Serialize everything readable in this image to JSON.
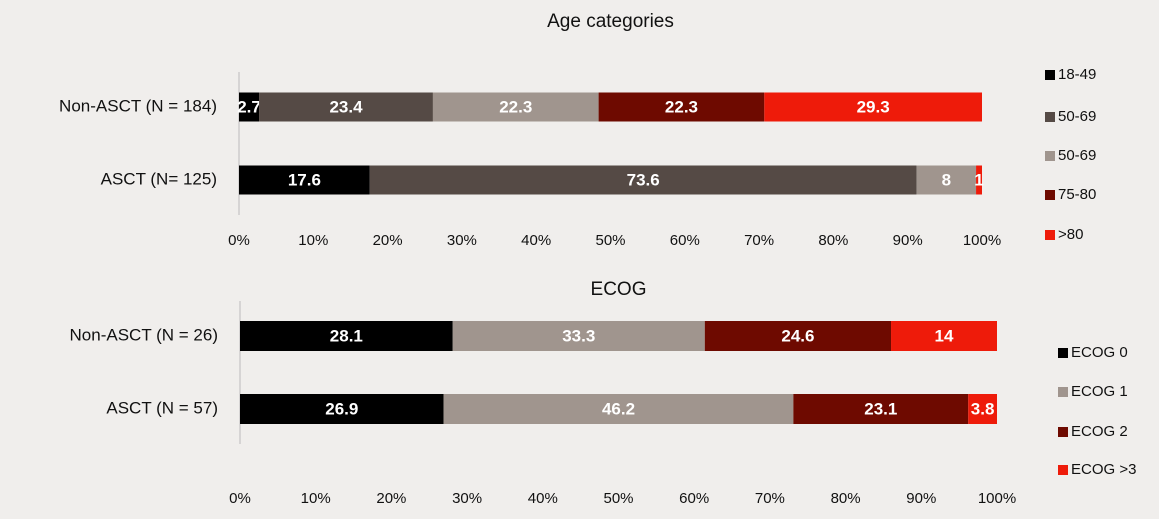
{
  "chart_data": [
    {
      "type": "stacked-bar-horizontal",
      "title": "Age categories",
      "categories": [
        "Non-ASCT (N = 184)",
        "ASCT (N= 125)"
      ],
      "series": [
        {
          "name": "18-49",
          "color": "#000000",
          "values": [
            2.7,
            17.6
          ]
        },
        {
          "name": "50-69",
          "color": "#554a45",
          "values": [
            23.4,
            73.6
          ]
        },
        {
          "name": "50-69",
          "color": "#a0958e",
          "values": [
            22.3,
            8
          ]
        },
        {
          "name": "75-80",
          "color": "#6e0a00",
          "values": [
            22.3,
            0
          ],
          "value_labels": [
            "22.3",
            null
          ]
        },
        {
          "name": ">80",
          "color": "#ee1b0a",
          "values": [
            29.3,
            0.8
          ],
          "value_labels": [
            "29.3",
            "1"
          ]
        }
      ],
      "xlim": [
        0,
        100
      ],
      "xticks": [
        {
          "value": 0,
          "label": "0%"
        },
        {
          "value": 10,
          "label": "10%"
        },
        {
          "value": 20,
          "label": "20%"
        },
        {
          "value": 30,
          "label": "30%"
        },
        {
          "value": 40,
          "label": "40%"
        },
        {
          "value": 50,
          "label": "50%"
        },
        {
          "value": 60,
          "label": "60%"
        },
        {
          "value": 70,
          "label": "70%"
        },
        {
          "value": 80,
          "label": "80%"
        },
        {
          "value": 90,
          "label": "90%"
        },
        {
          "value": 100,
          "label": "100%"
        }
      ],
      "legend": "right"
    },
    {
      "type": "stacked-bar-horizontal",
      "title": "ECOG",
      "categories": [
        "Non-ASCT (N = 26)",
        "ASCT (N = 57)"
      ],
      "series": [
        {
          "name": "ECOG 0",
          "color": "#000000",
          "values": [
            28.1,
            26.9
          ]
        },
        {
          "name": "ECOG 1",
          "color": "#a0958e",
          "values": [
            33.3,
            46.2
          ]
        },
        {
          "name": "ECOG 2",
          "color": "#6e0a00",
          "values": [
            24.6,
            23.1
          ]
        },
        {
          "name": "ECOG >3",
          "color": "#ee1b0a",
          "values": [
            14,
            3.8
          ]
        }
      ],
      "xlim": [
        0,
        100
      ],
      "xticks": [
        {
          "value": 0,
          "label": "0%"
        },
        {
          "value": 10,
          "label": "10%"
        },
        {
          "value": 20,
          "label": "20%"
        },
        {
          "value": 30,
          "label": "30%"
        },
        {
          "value": 40,
          "label": "40%"
        },
        {
          "value": 50,
          "label": "50%"
        },
        {
          "value": 60,
          "label": "60%"
        },
        {
          "value": 70,
          "label": "70%"
        },
        {
          "value": 80,
          "label": "80%"
        },
        {
          "value": 90,
          "label": "90%"
        },
        {
          "value": 100,
          "label": "100%"
        }
      ],
      "legend": "right"
    }
  ]
}
